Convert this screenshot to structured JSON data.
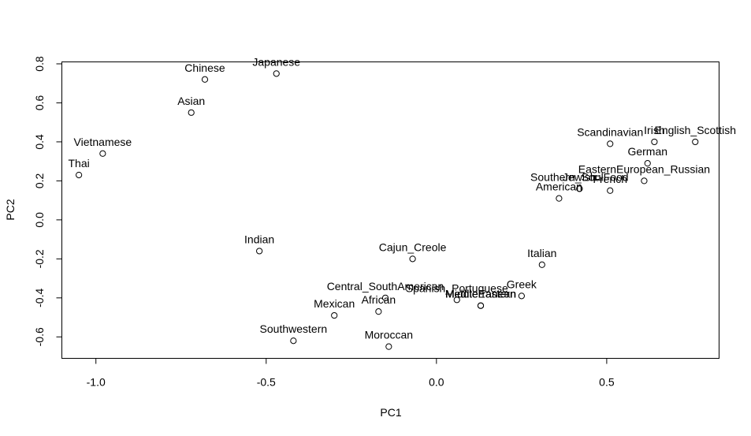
{
  "chart_data": {
    "type": "scatter",
    "title": "",
    "xlabel": "PC1",
    "ylabel": "PC2",
    "xlim": [
      -1.1,
      0.83
    ],
    "ylim": [
      -0.71,
      0.81
    ],
    "xticks": [
      -1.0,
      -0.5,
      0.0,
      0.5
    ],
    "xtick_labels": [
      "-1.0",
      "-0.5",
      "0.0",
      "0.5"
    ],
    "yticks": [
      -0.6,
      -0.4,
      -0.2,
      0.0,
      0.2,
      0.4,
      0.6,
      0.8
    ],
    "ytick_labels": [
      "-0.6",
      "-0.4",
      "-0.2",
      "0.0",
      "0.2",
      "0.4",
      "0.6",
      "0.8"
    ],
    "grid": false,
    "points": [
      {
        "label": "Japanese",
        "x": -0.47,
        "y": 0.75
      },
      {
        "label": "Chinese",
        "x": -0.68,
        "y": 0.72
      },
      {
        "label": "Asian",
        "x": -0.72,
        "y": 0.55
      },
      {
        "label": "Vietnamese",
        "x": -0.98,
        "y": 0.34
      },
      {
        "label": "Thai",
        "x": -1.05,
        "y": 0.23
      },
      {
        "label": "Indian",
        "x": -0.52,
        "y": -0.16
      },
      {
        "label": "Cajun_Creole",
        "x": -0.07,
        "y": -0.2
      },
      {
        "label": "Italian",
        "x": 0.31,
        "y": -0.23
      },
      {
        "label": "Central_SouthAmerican",
        "x": -0.15,
        "y": -0.4
      },
      {
        "label": "Spanish_Portuguese",
        "x": 0.06,
        "y": -0.41
      },
      {
        "label": "MiddleEastern",
        "x": 0.13,
        "y": -0.44
      },
      {
        "label": "Greek",
        "x": 0.25,
        "y": -0.39
      },
      {
        "label": "Mediterranean",
        "x": 0.13,
        "y": -0.44
      },
      {
        "label": "African",
        "x": -0.17,
        "y": -0.47
      },
      {
        "label": "Mexican",
        "x": -0.3,
        "y": -0.49
      },
      {
        "label": "Southwestern",
        "x": -0.42,
        "y": -0.62
      },
      {
        "label": "Moroccan",
        "x": -0.14,
        "y": -0.65
      },
      {
        "label": "Scandinavian",
        "x": 0.51,
        "y": 0.39
      },
      {
        "label": "Irish",
        "x": 0.64,
        "y": 0.4
      },
      {
        "label": "English_Scottish",
        "x": 0.76,
        "y": 0.4
      },
      {
        "label": "German",
        "x": 0.62,
        "y": 0.29
      },
      {
        "label": "EasternEuropean_Russian",
        "x": 0.61,
        "y": 0.2
      },
      {
        "label": "Southern_SoulFood",
        "x": 0.42,
        "y": 0.16
      },
      {
        "label": "Jewish",
        "x": 0.42,
        "y": 0.16
      },
      {
        "label": "French",
        "x": 0.51,
        "y": 0.15
      },
      {
        "label": "American",
        "x": 0.36,
        "y": 0.11
      }
    ]
  }
}
